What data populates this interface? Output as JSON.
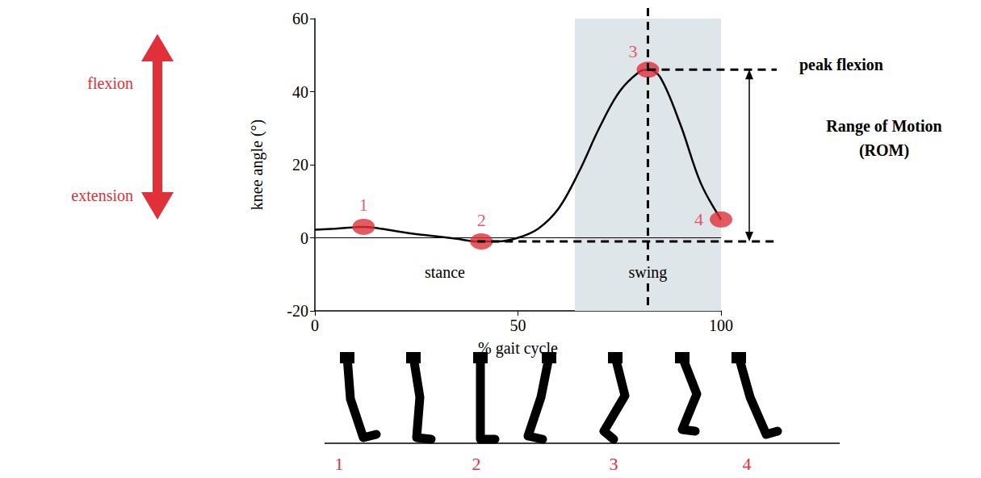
{
  "chart_data": {
    "type": "line",
    "xlabel": "% gait cycle",
    "ylabel": "knee angle (°)",
    "xlim": [
      0,
      100
    ],
    "xticks": [
      0,
      50,
      100
    ],
    "ylim": [
      -20,
      60
    ],
    "yticks": [
      -20,
      0,
      20,
      40,
      60
    ],
    "series": [
      {
        "color": "#000000",
        "x": [
          0,
          5,
          10,
          12,
          15,
          20,
          25,
          30,
          35,
          40,
          45,
          50,
          55,
          60,
          65,
          70,
          75,
          80,
          82,
          85,
          90,
          95,
          100
        ],
        "values": [
          2.2,
          2.5,
          2.9,
          3,
          2.7,
          1.8,
          1,
          0.4,
          -0.3,
          -1,
          -1,
          0,
          2.5,
          8,
          18,
          30,
          40,
          45.5,
          46,
          44,
          31,
          15,
          5
        ]
      }
    ],
    "points": {
      "labels": [
        "1",
        "2",
        "3",
        "4"
      ],
      "x": [
        12,
        41,
        82,
        100
      ],
      "y": [
        3,
        -1,
        46,
        5
      ],
      "color": "#e0303a"
    },
    "phases": [
      {
        "label": "stance",
        "start": 0,
        "end": 64
      },
      {
        "label": "swing",
        "start": 64,
        "end": 100,
        "color": "#dfe6ea"
      }
    ],
    "reference_line": 0,
    "peak": {
      "label": "peak flexion",
      "x": 82
    },
    "range_of_motion": {
      "label": "Range of Motion (ROM)",
      "min": -1,
      "max": 46
    },
    "direction_labels": {
      "up": "flexion",
      "down": "extension",
      "color": "#e0303a"
    },
    "figure_labels": [
      "1",
      "2",
      "3",
      "4"
    ]
  }
}
